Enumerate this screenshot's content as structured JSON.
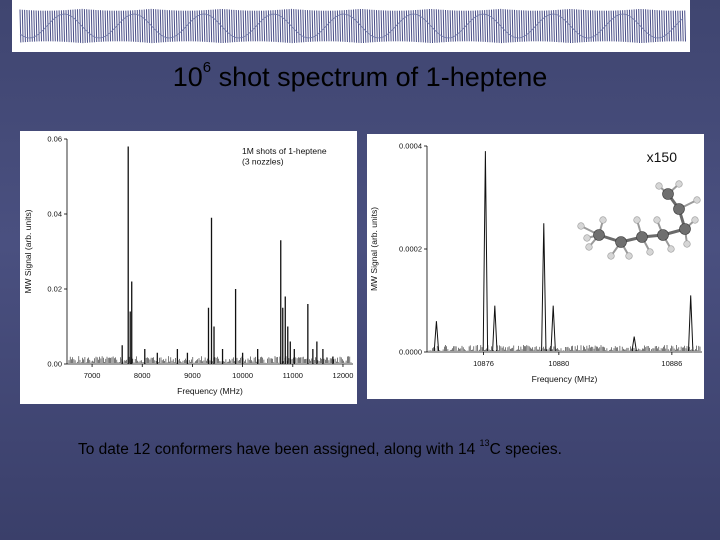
{
  "slide": {
    "title_base": "10",
    "title_sup": "6",
    "title_rest": " shot spectrum of 1-heptene",
    "caption_before": "To date 12 conformers have been assigned, along with 14 ",
    "caption_sup": "13",
    "caption_after": "C species.",
    "background_color": "#454b78"
  },
  "chart_data": [
    {
      "type": "line",
      "annotation_lines": [
        "1M shots of 1-heptene",
        "(3 nozzles)"
      ],
      "xlabel": "Frequency (MHz)",
      "ylabel": "MW Signal (arb. units)",
      "xlim": [
        6500,
        12200
      ],
      "ylim": [
        0,
        0.06
      ],
      "x_ticks": [
        "7000",
        "8000",
        "9000",
        "10000",
        "11000",
        "12000"
      ],
      "x_tick_values": [
        7000,
        8000,
        9000,
        10000,
        11000,
        12000
      ],
      "y_ticks": [
        "0.00",
        "0.02",
        "0.04",
        "0.06"
      ],
      "y_tick_values": [
        0,
        0.02,
        0.04,
        0.06
      ],
      "grid": false,
      "peaks": [
        {
          "x": 7720,
          "y": 0.058
        },
        {
          "x": 7760,
          "y": 0.014
        },
        {
          "x": 7790,
          "y": 0.022
        },
        {
          "x": 7600,
          "y": 0.005
        },
        {
          "x": 8050,
          "y": 0.004
        },
        {
          "x": 8300,
          "y": 0.003
        },
        {
          "x": 8700,
          "y": 0.004
        },
        {
          "x": 8900,
          "y": 0.003
        },
        {
          "x": 9320,
          "y": 0.015
        },
        {
          "x": 9380,
          "y": 0.039
        },
        {
          "x": 9430,
          "y": 0.01
        },
        {
          "x": 9600,
          "y": 0.004
        },
        {
          "x": 9860,
          "y": 0.02
        },
        {
          "x": 10000,
          "y": 0.003
        },
        {
          "x": 10300,
          "y": 0.004
        },
        {
          "x": 10760,
          "y": 0.033
        },
        {
          "x": 10800,
          "y": 0.015
        },
        {
          "x": 10850,
          "y": 0.018
        },
        {
          "x": 10900,
          "y": 0.01
        },
        {
          "x": 10950,
          "y": 0.006
        },
        {
          "x": 11030,
          "y": 0.004
        },
        {
          "x": 11300,
          "y": 0.016
        },
        {
          "x": 11400,
          "y": 0.004
        },
        {
          "x": 11480,
          "y": 0.006
        },
        {
          "x": 11600,
          "y": 0.004
        },
        {
          "x": 11800,
          "y": 0.002
        }
      ]
    },
    {
      "type": "line",
      "annotation_lines": [
        "x150"
      ],
      "xlabel": "Frequency (MHz)",
      "ylabel": "MW Signal (arb. units)",
      "xlim": [
        10873.0,
        10887.6
      ],
      "ylim": [
        0,
        0.0004
      ],
      "x_ticks": [
        "10876",
        "10880",
        "10886"
      ],
      "x_tick_values": [
        10876,
        10880,
        10886
      ],
      "y_ticks": [
        "0.0000",
        "0.0002",
        "0.0004"
      ],
      "y_tick_values": [
        0,
        0.0002,
        0.0004
      ],
      "grid": false,
      "peaks": [
        {
          "x": 10873.5,
          "y": 6e-05
        },
        {
          "x": 10876.1,
          "y": 0.00039
        },
        {
          "x": 10876.6,
          "y": 9e-05
        },
        {
          "x": 10879.2,
          "y": 0.00025
        },
        {
          "x": 10879.7,
          "y": 9e-05
        },
        {
          "x": 10884.0,
          "y": 3e-05
        },
        {
          "x": 10887.0,
          "y": 0.00011
        }
      ]
    }
  ]
}
